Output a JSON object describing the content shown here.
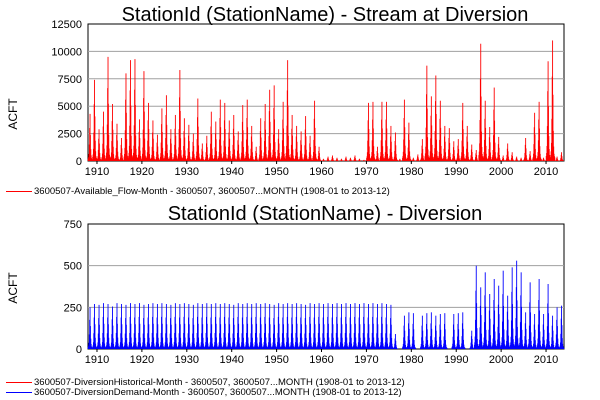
{
  "chart_data": [
    {
      "type": "bar",
      "title": "StationId (StationName) - Stream at Diversion",
      "xlabel": "",
      "ylabel": "ACFT",
      "xlim": [
        1908,
        2014
      ],
      "ylim": [
        0,
        12500
      ],
      "y_ticks": [
        "0",
        "2500",
        "5000",
        "7500",
        "10000",
        "12500"
      ],
      "x_ticks": [
        "1910",
        "1920",
        "1930",
        "1940",
        "1950",
        "1960",
        "1970",
        "1980",
        "1990",
        "2000",
        "2010"
      ],
      "grid": true,
      "legend_position": "bottom",
      "series": [
        {
          "name": "3600507-Available_Flow-Month - 3600507, 3600507...MONTH (1908-01 to 2013-12)",
          "color": "#ff0000",
          "annual_peaks": {
            "years": [
              1908,
              1909,
              1910,
              1911,
              1912,
              1913,
              1914,
              1915,
              1916,
              1917,
              1918,
              1919,
              1920,
              1921,
              1922,
              1923,
              1924,
              1925,
              1926,
              1927,
              1928,
              1929,
              1930,
              1931,
              1932,
              1933,
              1934,
              1935,
              1936,
              1937,
              1938,
              1939,
              1940,
              1941,
              1942,
              1943,
              1944,
              1945,
              1946,
              1947,
              1948,
              1949,
              1950,
              1951,
              1952,
              1953,
              1954,
              1955,
              1956,
              1957,
              1958,
              1959,
              1960,
              1961,
              1962,
              1963,
              1964,
              1965,
              1966,
              1967,
              1968,
              1969,
              1970,
              1971,
              1972,
              1973,
              1974,
              1975,
              1976,
              1977,
              1978,
              1979,
              1980,
              1981,
              1982,
              1983,
              1984,
              1985,
              1986,
              1987,
              1988,
              1989,
              1990,
              1991,
              1992,
              1993,
              1994,
              1995,
              1996,
              1997,
              1998,
              1999,
              2000,
              2001,
              2002,
              2003,
              2004,
              2005,
              2006,
              2007,
              2008,
              2009,
              2010,
              2011,
              2012,
              2013
            ],
            "values": [
              4300,
              7400,
              2900,
              4500,
              9500,
              5200,
              3400,
              2100,
              8000,
              9200,
              9300,
              3800,
              8200,
              5300,
              3700,
              2400,
              4800,
              6000,
              2900,
              4200,
              8300,
              3900,
              3300,
              2500,
              5700,
              1600,
              2300,
              4500,
              3600,
              5600,
              5300,
              3700,
              4200,
              2700,
              5100,
              5600,
              3200,
              1300,
              3900,
              5200,
              6500,
              6900,
              2900,
              5400,
              9200,
              4200,
              3200,
              2700,
              4100,
              2300,
              5500,
              1300,
              200,
              400,
              500,
              300,
              200,
              400,
              300,
              500,
              200,
              100,
              5300,
              5400,
              1300,
              5400,
              5400,
              3200,
              2600,
              200,
              5600,
              3500,
              300,
              600,
              2000,
              8700,
              5900,
              7800,
              5500,
              3200,
              3000,
              1800,
              2000,
              5300,
              3200,
              1500,
              1000,
              10700,
              5500,
              3100,
              6700,
              2200,
              500,
              1600,
              800,
              400,
              300,
              2100,
              900,
              4400,
              5400,
              300,
              9100,
              11000,
              400,
              800
            ]
          }
        }
      ]
    },
    {
      "type": "bar",
      "title": "StationId (StationName) - Diversion",
      "xlabel": "",
      "ylabel": "ACFT",
      "xlim": [
        1908,
        2014
      ],
      "ylim": [
        0,
        750
      ],
      "y_ticks": [
        "0",
        "250",
        "500",
        "750"
      ],
      "x_ticks": [
        "1910",
        "1920",
        "1930",
        "1940",
        "1950",
        "1960",
        "1970",
        "1980",
        "1990",
        "2000",
        "2010"
      ],
      "grid": true,
      "legend_position": "bottom",
      "series": [
        {
          "name": "3600507-DiversionHistorical-Month - 3600507, 3600507...MONTH (1908-01 to 2013-12)",
          "color": "#ff0000",
          "annual_peaks": {
            "years": [],
            "values": []
          }
        },
        {
          "name": "3600507-DiversionDemand-Month - 3600507, 3600507...MONTH (1908-01 to 2013-12)",
          "color": "#0000ff",
          "annual_peaks": {
            "years": [
              1908,
              1909,
              1910,
              1911,
              1912,
              1913,
              1914,
              1915,
              1916,
              1917,
              1918,
              1919,
              1920,
              1921,
              1922,
              1923,
              1924,
              1925,
              1926,
              1927,
              1928,
              1929,
              1930,
              1931,
              1932,
              1933,
              1934,
              1935,
              1936,
              1937,
              1938,
              1939,
              1940,
              1941,
              1942,
              1943,
              1944,
              1945,
              1946,
              1947,
              1948,
              1949,
              1950,
              1951,
              1952,
              1953,
              1954,
              1955,
              1956,
              1957,
              1958,
              1959,
              1960,
              1961,
              1962,
              1963,
              1964,
              1965,
              1966,
              1967,
              1968,
              1969,
              1970,
              1971,
              1972,
              1973,
              1974,
              1975,
              1976,
              1977,
              1978,
              1979,
              1980,
              1981,
              1982,
              1983,
              1984,
              1985,
              1986,
              1987,
              1988,
              1989,
              1990,
              1991,
              1992,
              1993,
              1994,
              1995,
              1996,
              1997,
              1998,
              1999,
              2000,
              2001,
              2002,
              2003,
              2004,
              2005,
              2006,
              2007,
              2008,
              2009,
              2010,
              2011,
              2012,
              2013
            ],
            "values": [
              250,
              270,
              265,
              275,
              270,
              255,
              275,
              270,
              265,
              275,
              270,
              275,
              265,
              270,
              275,
              270,
              275,
              270,
              265,
              275,
              270,
              275,
              270,
              265,
              275,
              270,
              275,
              270,
              275,
              270,
              275,
              270,
              265,
              275,
              270,
              275,
              270,
              275,
              270,
              275,
              270,
              265,
              275,
              270,
              275,
              270,
              275,
              270,
              265,
              275,
              270,
              275,
              270,
              275,
              270,
              275,
              270,
              275,
              270,
              275,
              270,
              275,
              270,
              275,
              270,
              275,
              270,
              265,
              90,
              0,
              200,
              220,
              215,
              0,
              200,
              215,
              220,
              200,
              210,
              215,
              0,
              210,
              215,
              220,
              0,
              110,
              500,
              370,
              460,
              330,
              420,
              380,
              470,
              320,
              490,
              530,
              460,
              220,
              400,
              210,
              420,
              210,
              390,
              200,
              250,
              260
            ]
          }
        }
      ]
    }
  ]
}
